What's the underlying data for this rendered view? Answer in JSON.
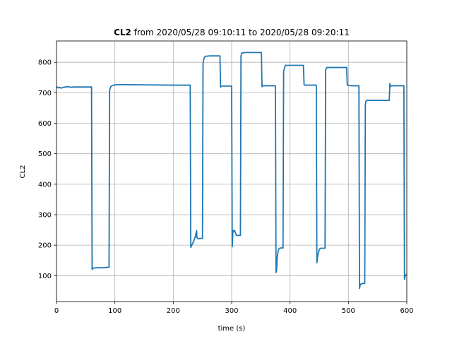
{
  "chart_data": {
    "type": "line",
    "title_bold": "CL2",
    "title_rest": " from 2020/05/28 09:10:11 to 2020/05/28 09:20:11",
    "xlabel": "time (s)",
    "ylabel": "CL2",
    "xlim": [
      0,
      600
    ],
    "ylim": [
      15,
      870
    ],
    "xticks": [
      0,
      100,
      200,
      300,
      400,
      500,
      600
    ],
    "yticks": [
      100,
      200,
      300,
      400,
      500,
      600,
      700,
      800
    ],
    "grid": true,
    "line_color": "#1f77b4",
    "series": [
      {
        "x": [
          0,
          3,
          5,
          8,
          10,
          15,
          20,
          25,
          30,
          60,
          61,
          62,
          63,
          70,
          80,
          90,
          91,
          93,
          95,
          100,
          110,
          150,
          200,
          229,
          230,
          231,
          233,
          235,
          238,
          240,
          240.5,
          242,
          243,
          245,
          250,
          251,
          253,
          255,
          258,
          262,
          280,
          281,
          282,
          300,
          301,
          302,
          303,
          304,
          305,
          308,
          309,
          312,
          315,
          316,
          317,
          318,
          320,
          322,
          330,
          351,
          352,
          353,
          370,
          375,
          376,
          377,
          378,
          380,
          382,
          385,
          388,
          389,
          392,
          395,
          423,
          424,
          425,
          430,
          445,
          446,
          447,
          448,
          450,
          452,
          455,
          460,
          461,
          463,
          465,
          470,
          480,
          497,
          498,
          499,
          500,
          505,
          518,
          519,
          520,
          521,
          522,
          524,
          528,
          529,
          530,
          531,
          532,
          533,
          540,
          570,
          571,
          572,
          573,
          575,
          590,
          594,
          595,
          596,
          597,
          598,
          600
        ],
        "y": [
          720,
          716,
          718,
          715,
          717,
          719,
          720,
          718,
          719,
          719,
          120,
          123,
          125,
          126,
          126,
          128,
          710,
          720,
          723,
          726,
          727,
          726,
          725,
          725,
          193,
          197,
          205,
          213,
          230,
          248,
          225,
          222,
          221,
          222,
          222,
          797,
          815,
          820,
          820,
          821,
          821,
          718,
          722,
          722,
          195,
          240,
          248,
          247,
          248,
          233,
          232,
          232,
          232,
          820,
          828,
          831,
          831,
          832,
          832,
          832,
          720,
          723,
          723,
          723,
          110,
          118,
          160,
          185,
          190,
          191,
          191,
          770,
          790,
          790,
          790,
          728,
          725,
          725,
          725,
          142,
          160,
          170,
          185,
          190,
          190,
          190,
          775,
          783,
          783,
          783,
          783,
          783,
          726,
          724,
          724,
          723,
          723,
          58,
          68,
          72,
          73,
          74,
          75,
          662,
          672,
          675,
          675,
          675,
          675,
          675,
          730,
          720,
          722,
          723,
          723,
          723,
          723,
          88,
          98,
          102,
          103
        ]
      }
    ]
  }
}
